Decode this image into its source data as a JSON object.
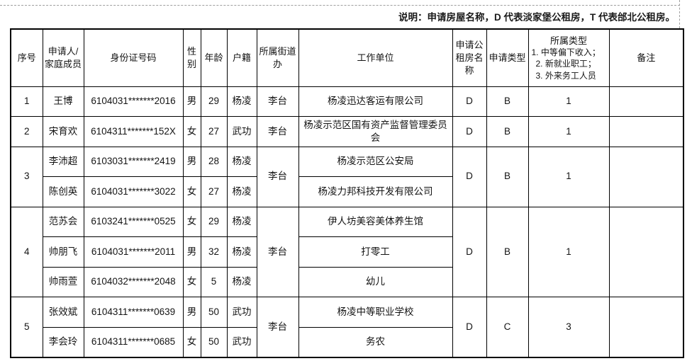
{
  "note": "说明：申请房屋名称，D 代表淡家堡公租房，T 代表邰北公租房。",
  "table": {
    "columns": [
      "序号",
      "申请人/家庭成员",
      "身份证号码",
      "性别",
      "年龄",
      "户籍",
      "所属街道办",
      "工作单位",
      "申请公租房名称",
      "申请类型",
      "所属类型",
      "备注"
    ],
    "category_legend": [
      "1. 中等偏下收入；",
      "2. 新就业职工；",
      "3. 外来务工人员"
    ]
  },
  "groups": [
    {
      "seq": "1",
      "street": "李台",
      "housing": "D",
      "app_type": "B",
      "category": "1",
      "remark": "",
      "members": [
        {
          "name": "王博",
          "id": "6104031*******2016",
          "gender": "男",
          "age": "29",
          "registration": "杨凌",
          "employer": "杨凌迅达客运有限公司"
        }
      ]
    },
    {
      "seq": "2",
      "street": "李台",
      "housing": "D",
      "app_type": "B",
      "category": "1",
      "remark": "",
      "members": [
        {
          "name": "宋育欢",
          "id": "6104311*******152X",
          "gender": "女",
          "age": "27",
          "registration": "武功",
          "employer": "杨凌示范区国有资产监督管理委员会"
        }
      ]
    },
    {
      "seq": "3",
      "street": "李台",
      "housing": "D",
      "app_type": "B",
      "category": "1",
      "remark": "",
      "members": [
        {
          "name": "李沛超",
          "id": "6103031*******2419",
          "gender": "男",
          "age": "28",
          "registration": "杨凌",
          "employer": "杨凌示范区公安局"
        },
        {
          "name": "陈创英",
          "id": "6104031*******3022",
          "gender": "女",
          "age": "27",
          "registration": "杨凌",
          "employer": "杨凌力邦科技开发有限公司"
        }
      ]
    },
    {
      "seq": "4",
      "street": "李台",
      "housing": "D",
      "app_type": "B",
      "category": "1",
      "remark": "",
      "members": [
        {
          "name": "范苏会",
          "id": "6103241*******0525",
          "gender": "女",
          "age": "29",
          "registration": "杨凌",
          "employer": "伊人坊美容美体养生馆"
        },
        {
          "name": "帅朋飞",
          "id": "6104031*******2011",
          "gender": "男",
          "age": "32",
          "registration": "杨凌",
          "employer": "打零工"
        },
        {
          "name": "帅雨萱",
          "id": "6104032*******2048",
          "gender": "女",
          "age": "5",
          "registration": "杨凌",
          "employer": "幼儿"
        }
      ]
    },
    {
      "seq": "5",
      "street": "李台",
      "housing": "D",
      "app_type": "C",
      "category": "3",
      "remark": "",
      "members": [
        {
          "name": "张效斌",
          "id": "6104311*******0639",
          "gender": "男",
          "age": "50",
          "registration": "武功",
          "employer": "杨凌中等职业学校"
        },
        {
          "name": "李会玲",
          "id": "6104311*******0685",
          "gender": "女",
          "age": "50",
          "registration": "武功",
          "employer": "务农"
        }
      ]
    }
  ]
}
